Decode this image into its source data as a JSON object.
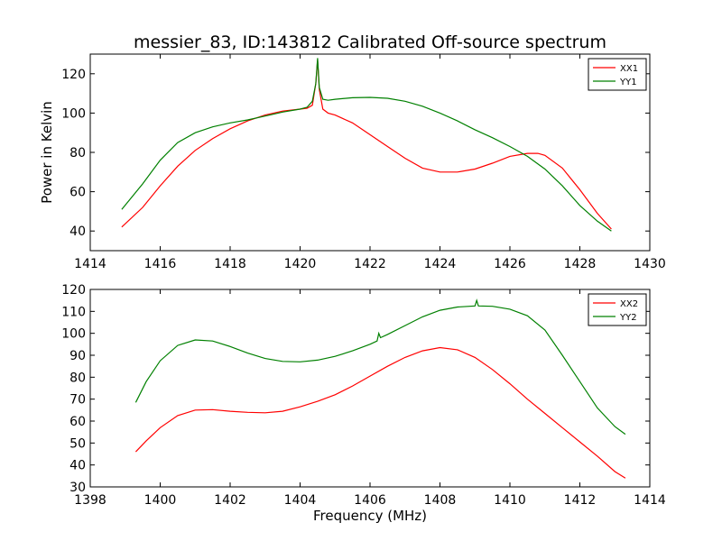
{
  "title": "messier_83, ID:143812 Calibrated Off-source spectrum",
  "chart_data": [
    {
      "type": "line",
      "title": "messier_83, ID:143812 Calibrated Off-source spectrum",
      "xlabel": "",
      "ylabel": "Power in Kelvin",
      "xlim": [
        1414,
        1430
      ],
      "ylim": [
        30,
        130
      ],
      "xticks": [
        1414,
        1416,
        1418,
        1420,
        1422,
        1424,
        1426,
        1428,
        1430
      ],
      "yticks": [
        40,
        60,
        80,
        100,
        120
      ],
      "legend": "top-right",
      "grid": false,
      "series": [
        {
          "name": "XX1",
          "color": "#ff0000",
          "x": [
            1414.9,
            1415.5,
            1416.0,
            1416.5,
            1417.0,
            1417.5,
            1418.0,
            1418.5,
            1419.0,
            1419.5,
            1420.0,
            1420.2,
            1420.35,
            1420.45,
            1420.5,
            1420.55,
            1420.65,
            1420.8,
            1421.0,
            1421.5,
            1422.0,
            1422.5,
            1423.0,
            1423.5,
            1424.0,
            1424.5,
            1425.0,
            1425.5,
            1426.0,
            1426.5,
            1426.8,
            1427.0,
            1427.5,
            1428.0,
            1428.5,
            1428.9
          ],
          "y": [
            42,
            52,
            63,
            73,
            81,
            87,
            92,
            96,
            99,
            101,
            102,
            102.5,
            104,
            115,
            127,
            112,
            102,
            100,
            99,
            95,
            89,
            83,
            77,
            72,
            70,
            70,
            71.5,
            74.5,
            78,
            79.5,
            79.5,
            78.5,
            72,
            61,
            49,
            41
          ]
        },
        {
          "name": "YY1",
          "color": "#008000",
          "x": [
            1414.9,
            1415.5,
            1416.0,
            1416.5,
            1417.0,
            1417.5,
            1418.0,
            1418.5,
            1419.0,
            1419.5,
            1420.0,
            1420.2,
            1420.35,
            1420.45,
            1420.5,
            1420.55,
            1420.65,
            1420.8,
            1421.0,
            1421.5,
            1422.0,
            1422.5,
            1423.0,
            1423.5,
            1424.0,
            1424.5,
            1425.0,
            1425.5,
            1426.0,
            1426.5,
            1427.0,
            1427.5,
            1428.0,
            1428.5,
            1428.9
          ],
          "y": [
            51,
            64,
            76,
            85,
            90,
            93,
            95,
            96.5,
            98.5,
            100.5,
            102,
            103,
            106,
            115,
            128,
            113,
            107,
            106.5,
            107,
            107.8,
            108,
            107.5,
            106,
            103.5,
            100,
            96,
            91.5,
            87.5,
            83,
            78,
            71.5,
            63,
            53,
            45,
            40
          ]
        }
      ]
    },
    {
      "type": "line",
      "title": "",
      "xlabel": "Frequency (MHz)",
      "ylabel": "",
      "xlim": [
        1398,
        1414
      ],
      "ylim": [
        30,
        120
      ],
      "xticks": [
        1398,
        1400,
        1402,
        1404,
        1406,
        1408,
        1410,
        1412,
        1414
      ],
      "yticks": [
        30,
        40,
        50,
        60,
        70,
        80,
        90,
        100,
        110,
        120
      ],
      "legend": "top-right",
      "grid": false,
      "series": [
        {
          "name": "XX2",
          "color": "#ff0000",
          "x": [
            1399.3,
            1399.6,
            1400.0,
            1400.5,
            1401.0,
            1401.5,
            1402.0,
            1402.5,
            1403.0,
            1403.5,
            1404.0,
            1404.5,
            1405.0,
            1405.5,
            1406.0,
            1406.5,
            1407.0,
            1407.5,
            1408.0,
            1408.5,
            1409.0,
            1409.5,
            1410.0,
            1410.5,
            1411.0,
            1411.5,
            1412.0,
            1412.5,
            1413.0,
            1413.3
          ],
          "y": [
            46,
            51,
            57,
            62.5,
            65,
            65.2,
            64.5,
            64,
            63.8,
            64.5,
            66.5,
            69,
            72,
            76,
            80.5,
            85,
            89,
            92,
            93.5,
            92.5,
            89,
            83.5,
            77,
            70,
            63.5,
            57,
            50.5,
            44,
            37,
            34
          ]
        },
        {
          "name": "YY2",
          "color": "#008000",
          "x": [
            1399.3,
            1399.6,
            1400.0,
            1400.5,
            1401.0,
            1401.5,
            1402.0,
            1402.5,
            1403.0,
            1403.5,
            1404.0,
            1404.5,
            1405.0,
            1405.5,
            1406.0,
            1406.2,
            1406.25,
            1406.3,
            1406.5,
            1407.0,
            1407.5,
            1408.0,
            1408.5,
            1409.0,
            1409.05,
            1409.1,
            1409.5,
            1410.0,
            1410.5,
            1411.0,
            1411.5,
            1412.0,
            1412.5,
            1413.0,
            1413.3
          ],
          "y": [
            68.5,
            78,
            87.5,
            94.5,
            97,
            96.5,
            94,
            91,
            88.5,
            87.2,
            87,
            87.8,
            89.5,
            92,
            95,
            96.5,
            100,
            98,
            99.5,
            103.5,
            107.5,
            110.5,
            112,
            112.5,
            115,
            112.5,
            112.3,
            111,
            108,
            101.5,
            90,
            78,
            66,
            57.5,
            54
          ]
        }
      ]
    }
  ]
}
